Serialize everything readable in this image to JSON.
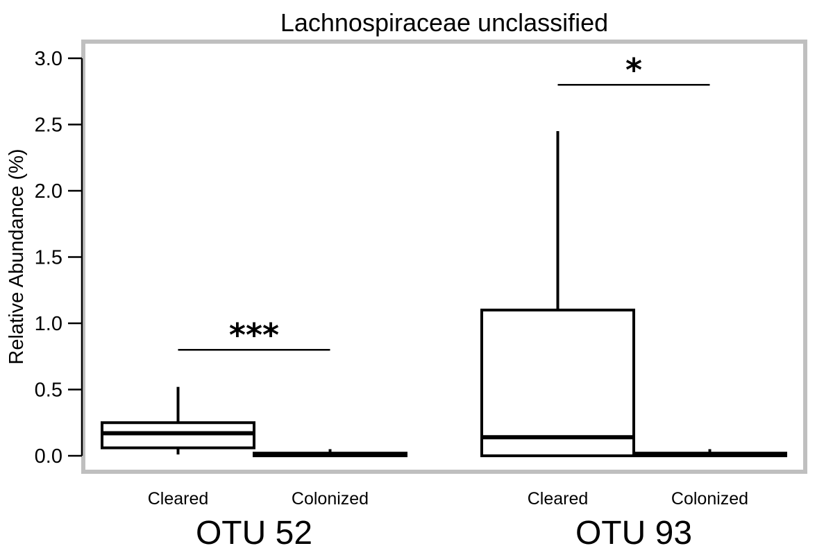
{
  "chart_data": {
    "type": "boxplot",
    "title": "Lachnospiraceae unclassified",
    "ylabel": "Relative Abundance (%)",
    "xlabel": "",
    "ylim": [
      0,
      3.0
    ],
    "yticks": [
      "0.0",
      "0.5",
      "1.0",
      "1.5",
      "2.0",
      "2.5",
      "3.0"
    ],
    "grid": false,
    "frame_color": "#bfbfbf",
    "groups": [
      {
        "label": "OTU 52",
        "boxes": [
          {
            "category": "Cleared",
            "whisker_low": 0.01,
            "q1": 0.06,
            "median": 0.17,
            "q3": 0.25,
            "whisker_high": 0.52
          },
          {
            "category": "Colonized",
            "whisker_low": 0.0,
            "q1": 0.0,
            "median": 0.01,
            "q3": 0.02,
            "whisker_high": 0.05
          }
        ],
        "significance": {
          "label": "***",
          "y": 0.8
        }
      },
      {
        "label": "OTU 93",
        "boxes": [
          {
            "category": "Cleared",
            "whisker_low": 0.0,
            "q1": 0.0,
            "median": 0.14,
            "q3": 1.1,
            "whisker_high": 2.45
          },
          {
            "category": "Colonized",
            "whisker_low": 0.0,
            "q1": 0.0,
            "median": 0.01,
            "q3": 0.02,
            "whisker_high": 0.05
          }
        ],
        "significance": {
          "label": "*",
          "y": 2.8
        }
      }
    ]
  }
}
